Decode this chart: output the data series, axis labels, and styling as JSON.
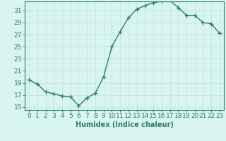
{
  "x": [
    0,
    1,
    2,
    3,
    4,
    5,
    6,
    7,
    8,
    9,
    10,
    11,
    12,
    13,
    14,
    15,
    16,
    17,
    18,
    19,
    20,
    21,
    22,
    23
  ],
  "y": [
    19.5,
    18.8,
    17.5,
    17.2,
    16.8,
    16.7,
    15.2,
    16.5,
    17.3,
    20.0,
    25.0,
    27.5,
    29.8,
    31.2,
    31.8,
    32.3,
    32.5,
    32.7,
    31.5,
    30.2,
    30.2,
    29.0,
    28.8,
    27.2
  ],
  "line_color": "#2d7a6e",
  "marker": "+",
  "marker_size": 4,
  "bg_color": "#d8f5f0",
  "grid_color": "#c8e8e2",
  "xlabel": "Humidex (Indice chaleur)",
  "ylabel": "",
  "xlim": [
    -0.5,
    23.5
  ],
  "ylim": [
    14.5,
    32.5
  ],
  "yticks": [
    15,
    17,
    19,
    21,
    23,
    25,
    27,
    29,
    31
  ],
  "xticks": [
    0,
    1,
    2,
    3,
    4,
    5,
    6,
    7,
    8,
    9,
    10,
    11,
    12,
    13,
    14,
    15,
    16,
    17,
    18,
    19,
    20,
    21,
    22,
    23
  ],
  "tick_label_color": "#2d7a6e",
  "axis_color": "#2d7a6e",
  "xlabel_color": "#2d7a6e",
  "xlabel_fontsize": 7,
  "tick_fontsize": 6.5
}
